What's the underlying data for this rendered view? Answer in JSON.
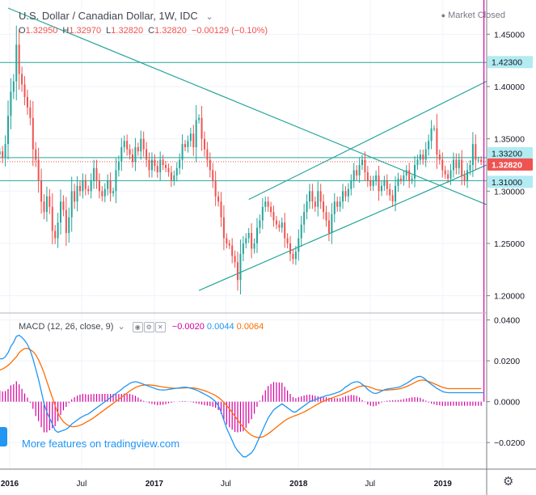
{
  "header": {
    "title": "U.S. Dollar / Canadian Dollar, 1W, IDC",
    "status": "Market Closed",
    "ohlc": {
      "o_label": "O",
      "o": "1.32950",
      "h_label": "H",
      "h": "1.32970",
      "l_label": "L",
      "l": "1.32820",
      "c_label": "C",
      "c": "1.32820",
      "change": "−0.00129 (−0.10%)"
    }
  },
  "macd": {
    "title": "MACD (12, 26, close, 9)",
    "hist_value": "−0.0020",
    "macd_value": "0.0044",
    "signal_value": "0.0064"
  },
  "promo": "More features on tradingview.com",
  "colors": {
    "up": "#26a69a",
    "down": "#ef5350",
    "line": "#26a69a",
    "macd": "#2196f3",
    "signal": "#ff6d00",
    "hist": "#d500a0"
  },
  "chart_data": [
    {
      "type": "candlestick",
      "x_ticks": [
        "2016",
        "Jul",
        "2017",
        "Jul",
        "2018",
        "Jul",
        "2019"
      ],
      "y_ticks": [
        "1.45000",
        "1.40000",
        "1.35000",
        "1.30000",
        "1.25000",
        "1.20000"
      ],
      "ylim": [
        1.185,
        1.475
      ],
      "price_labels": [
        {
          "text": "1.42300",
          "value": 1.423,
          "kind": "line"
        },
        {
          "text": "1.33200",
          "value": 1.332,
          "kind": "line"
        },
        {
          "text": "1.32820",
          "value": 1.3282,
          "kind": "last"
        },
        {
          "text": "1.31000",
          "value": 1.31,
          "kind": "line"
        }
      ],
      "horizontal_lines": [
        1.423,
        1.332,
        1.31
      ],
      "current_price": 1.3282,
      "trend_lines": [
        {
          "from": [
            "2015-12-28",
            1.475
          ],
          "to": [
            "2019-04-22",
            1.287
          ]
        },
        {
          "from": [
            "2017-08-28",
            1.292
          ],
          "to": [
            "2019-04-22",
            1.405
          ]
        },
        {
          "from": [
            "2017-04-24",
            1.205
          ],
          "to": [
            "2019-04-22",
            1.325
          ]
        }
      ],
      "candles_start": "2015-11-30",
      "closes": [
        1.335,
        1.338,
        1.332,
        1.345,
        1.372,
        1.395,
        1.405,
        1.44,
        1.412,
        1.402,
        1.39,
        1.38,
        1.37,
        1.34,
        1.33,
        1.31,
        1.29,
        1.28,
        1.295,
        1.285,
        1.262,
        1.255,
        1.27,
        1.29,
        1.282,
        1.26,
        1.275,
        1.3,
        1.29,
        1.305,
        1.3,
        1.31,
        1.302,
        1.3,
        1.31,
        1.322,
        1.31,
        1.3,
        1.295,
        1.302,
        1.31,
        1.298,
        1.3,
        1.32,
        1.328,
        1.342,
        1.348,
        1.34,
        1.335,
        1.328,
        1.342,
        1.338,
        1.35,
        1.34,
        1.33,
        1.32,
        1.33,
        1.324,
        1.318,
        1.33,
        1.325,
        1.322,
        1.318,
        1.31,
        1.315,
        1.322,
        1.33,
        1.345,
        1.342,
        1.348,
        1.355,
        1.342,
        1.368,
        1.37,
        1.35,
        1.34,
        1.33,
        1.32,
        1.31,
        1.295,
        1.29,
        1.275,
        1.255,
        1.25,
        1.248,
        1.238,
        1.232,
        1.215,
        1.24,
        1.25,
        1.255,
        1.26,
        1.245,
        1.25,
        1.265,
        1.272,
        1.285,
        1.29,
        1.285,
        1.28,
        1.272,
        1.268,
        1.265,
        1.27,
        1.255,
        1.25,
        1.24,
        1.235,
        1.242,
        1.255,
        1.268,
        1.28,
        1.29,
        1.3,
        1.29,
        1.285,
        1.3,
        1.29,
        1.28,
        1.272,
        1.26,
        1.278,
        1.29,
        1.285,
        1.29,
        1.3,
        1.295,
        1.302,
        1.31,
        1.32,
        1.315,
        1.325,
        1.33,
        1.318,
        1.31,
        1.305,
        1.31,
        1.315,
        1.3,
        1.305,
        1.31,
        1.302,
        1.296,
        1.29,
        1.305,
        1.312,
        1.31,
        1.315,
        1.32,
        1.31,
        1.312,
        1.325,
        1.33,
        1.335,
        1.33,
        1.34,
        1.348,
        1.36,
        1.36,
        1.335,
        1.33,
        1.32,
        1.316,
        1.312,
        1.32,
        1.33,
        1.322,
        1.33,
        1.315,
        1.31,
        1.32,
        1.325,
        1.345,
        1.33,
        1.33,
        1.3282
      ]
    },
    {
      "type": "macd",
      "y_ticks": [
        "0.0400",
        "0.0200",
        "0.0000",
        "−0.0200"
      ],
      "ylim": [
        -0.033,
        0.043
      ],
      "macd": [
        0.0205,
        0.021,
        0.021,
        0.022,
        0.024,
        0.027,
        0.029,
        0.032,
        0.0325,
        0.0315,
        0.03,
        0.028,
        0.025,
        0.021,
        0.016,
        0.011,
        0.005,
        -0.001,
        -0.005,
        -0.008,
        -0.011,
        -0.014,
        -0.015,
        -0.0145,
        -0.014,
        -0.0135,
        -0.0125,
        -0.011,
        -0.01,
        -0.009,
        -0.008,
        -0.0072,
        -0.0065,
        -0.006,
        -0.005,
        -0.004,
        -0.003,
        -0.002,
        -0.001,
        0.0,
        0.001,
        0.002,
        0.003,
        0.004,
        0.005,
        0.006,
        0.0072,
        0.008,
        0.009,
        0.0095,
        0.0098,
        0.0095,
        0.009,
        0.0085,
        0.008,
        0.0075,
        0.007,
        0.0065,
        0.006,
        0.0058,
        0.0057,
        0.0058,
        0.006,
        0.0062,
        0.0064,
        0.0066,
        0.0068,
        0.007,
        0.0071,
        0.0069,
        0.0066,
        0.0062,
        0.0057,
        0.0051,
        0.0044,
        0.0037,
        0.003,
        0.0022,
        0.0012,
        0.0,
        -0.002,
        -0.005,
        -0.009,
        -0.013,
        -0.016,
        -0.019,
        -0.022,
        -0.024,
        -0.0255,
        -0.027,
        -0.027,
        -0.026,
        -0.025,
        -0.023,
        -0.02,
        -0.017,
        -0.014,
        -0.011,
        -0.008,
        -0.006,
        -0.004,
        -0.003,
        -0.002,
        -0.001,
        -0.002,
        -0.003,
        -0.004,
        -0.005,
        -0.005,
        -0.004,
        -0.003,
        -0.002,
        -0.001,
        0.0,
        0.0005,
        0.001,
        0.0015,
        0.002,
        0.0025,
        0.003,
        0.0032,
        0.0036,
        0.004,
        0.0045,
        0.005,
        0.006,
        0.0072,
        0.008,
        0.009,
        0.0095,
        0.0098,
        0.0095,
        0.0085,
        0.0075,
        0.006,
        0.005,
        0.0042,
        0.004,
        0.0045,
        0.0052,
        0.0058,
        0.0062,
        0.0064,
        0.0066,
        0.0068,
        0.007,
        0.0075,
        0.0082,
        0.009,
        0.0098,
        0.0108,
        0.0116,
        0.0122,
        0.0124,
        0.0118,
        0.0108,
        0.0095,
        0.0085,
        0.0075,
        0.0065,
        0.0058,
        0.005,
        0.0046,
        0.0044,
        0.0044,
        0.0044,
        0.0044,
        0.0044,
        0.0044,
        0.0044,
        0.0044,
        0.0044,
        0.0044,
        0.0044,
        0.0044,
        0.0044,
        0.0044
      ],
      "signal": [
        0.015,
        0.0155,
        0.016,
        0.0168,
        0.0178,
        0.019,
        0.0205,
        0.022,
        0.024,
        0.0252,
        0.026,
        0.026,
        0.0255,
        0.0245,
        0.023,
        0.0205,
        0.0175,
        0.014,
        0.01,
        0.006,
        0.002,
        -0.002,
        -0.0055,
        -0.008,
        -0.0098,
        -0.011,
        -0.0118,
        -0.0122,
        -0.0122,
        -0.012,
        -0.0115,
        -0.011,
        -0.0102,
        -0.0095,
        -0.0087,
        -0.0078,
        -0.0068,
        -0.0058,
        -0.0048,
        -0.0038,
        -0.0028,
        -0.0018,
        -0.0008,
        0.0002,
        0.0012,
        0.0022,
        0.0032,
        0.0042,
        0.0052,
        0.0061,
        0.0069,
        0.0075,
        0.0079,
        0.0081,
        0.0082,
        0.0082,
        0.0081,
        0.0079,
        0.0077,
        0.0074,
        0.0072,
        0.007,
        0.0068,
        0.0067,
        0.0066,
        0.0066,
        0.0066,
        0.0067,
        0.0068,
        0.0068,
        0.0068,
        0.0067,
        0.0065,
        0.0062,
        0.0058,
        0.0054,
        0.0049,
        0.0043,
        0.0037,
        0.003,
        0.0021,
        0.001,
        -0.0003,
        -0.0018,
        -0.0035,
        -0.0053,
        -0.0072,
        -0.009,
        -0.0108,
        -0.0125,
        -0.0141,
        -0.0154,
        -0.0164,
        -0.0171,
        -0.0175,
        -0.0175,
        -0.0172,
        -0.0166,
        -0.0157,
        -0.0147,
        -0.0136,
        -0.0125,
        -0.0114,
        -0.0103,
        -0.0093,
        -0.0085,
        -0.0078,
        -0.0072,
        -0.0067,
        -0.0062,
        -0.0056,
        -0.005,
        -0.0043,
        -0.0035,
        -0.0027,
        -0.0019,
        -0.0011,
        -0.0004,
        0.0002,
        0.0008,
        0.0013,
        0.0018,
        0.0023,
        0.0028,
        0.0033,
        0.0038,
        0.0044,
        0.005,
        0.0057,
        0.0063,
        0.0069,
        0.0074,
        0.0077,
        0.0077,
        0.0074,
        0.007,
        0.0065,
        0.006,
        0.0057,
        0.0056,
        0.0056,
        0.0057,
        0.0058,
        0.0059,
        0.006,
        0.0062,
        0.0065,
        0.0069,
        0.0074,
        0.008,
        0.0087,
        0.0094,
        0.0101,
        0.0105,
        0.0106,
        0.0103,
        0.0099,
        0.0094,
        0.0088,
        0.0082,
        0.0076,
        0.0071,
        0.0067,
        0.0064,
        0.0064,
        0.0064,
        0.0064,
        0.0064,
        0.0064,
        0.0064,
        0.0064,
        0.0064,
        0.0064,
        0.0064,
        0.0064,
        0.0064
      ]
    }
  ]
}
